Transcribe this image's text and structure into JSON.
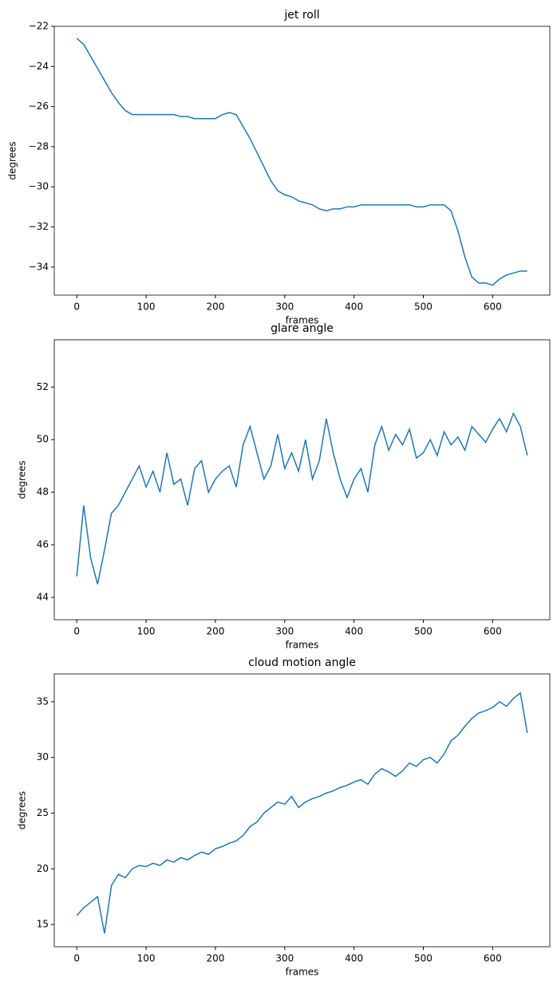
{
  "chart_data": [
    {
      "type": "line",
      "title": "jet roll",
      "x_label": "frames",
      "y_label": "degrees",
      "color": "#1f77b4",
      "x": [
        0,
        10,
        20,
        30,
        40,
        50,
        60,
        70,
        80,
        90,
        100,
        110,
        120,
        130,
        140,
        150,
        160,
        170,
        180,
        190,
        200,
        210,
        220,
        230,
        240,
        250,
        260,
        270,
        280,
        290,
        300,
        310,
        320,
        330,
        340,
        350,
        360,
        370,
        380,
        390,
        400,
        410,
        420,
        430,
        440,
        450,
        460,
        470,
        480,
        490,
        500,
        510,
        520,
        530,
        540,
        550,
        560,
        570,
        580,
        590,
        600,
        610,
        620,
        630,
        640,
        650
      ],
      "values": [
        -22.6,
        -22.9,
        -23.5,
        -24.1,
        -24.7,
        -25.3,
        -25.8,
        -26.2,
        -26.4,
        -26.4,
        -26.4,
        -26.4,
        -26.4,
        -26.4,
        -26.4,
        -26.5,
        -26.5,
        -26.6,
        -26.6,
        -26.6,
        -26.6,
        -26.4,
        -26.3,
        -26.4,
        -27.0,
        -27.6,
        -28.3,
        -29.0,
        -29.7,
        -30.2,
        -30.4,
        -30.5,
        -30.7,
        -30.8,
        -30.9,
        -31.1,
        -31.2,
        -31.1,
        -31.1,
        -31.0,
        -31.0,
        -30.9,
        -30.9,
        -30.9,
        -30.9,
        -30.9,
        -30.9,
        -30.9,
        -30.9,
        -31.0,
        -31.0,
        -30.9,
        -30.9,
        -30.9,
        -31.2,
        -32.2,
        -33.5,
        -34.5,
        -34.8,
        -34.8,
        -34.9,
        -34.6,
        -34.4,
        -34.3,
        -34.2,
        -34.2
      ],
      "xlim": [
        -32.5,
        682.5
      ],
      "ylim": [
        -35.4,
        -22
      ],
      "xticks": [
        0,
        100,
        200,
        300,
        400,
        500,
        600
      ],
      "yticks": [
        {
          "value": -34,
          "label": "−34"
        },
        {
          "value": -32,
          "label": "−32"
        },
        {
          "value": -30,
          "label": "−30"
        },
        {
          "value": -28,
          "label": "−28"
        },
        {
          "value": -26,
          "label": "−26"
        },
        {
          "value": -24,
          "label": "−24"
        },
        {
          "value": -22,
          "label": "−22"
        }
      ]
    },
    {
      "type": "line",
      "title": "glare angle",
      "x_label": "frames",
      "y_label": "degrees",
      "color": "#1f77b4",
      "x": [
        0,
        10,
        20,
        30,
        40,
        50,
        60,
        70,
        80,
        90,
        100,
        110,
        120,
        130,
        140,
        150,
        160,
        170,
        180,
        190,
        200,
        210,
        220,
        230,
        240,
        250,
        260,
        270,
        280,
        290,
        300,
        310,
        320,
        330,
        340,
        350,
        360,
        370,
        380,
        390,
        400,
        410,
        420,
        430,
        440,
        450,
        460,
        470,
        480,
        490,
        500,
        510,
        520,
        530,
        540,
        550,
        560,
        570,
        580,
        590,
        600,
        610,
        620,
        630,
        640,
        650
      ],
      "values": [
        44.8,
        47.5,
        45.5,
        44.5,
        45.8,
        47.2,
        47.5,
        48.0,
        48.5,
        49.0,
        48.2,
        48.8,
        48.0,
        49.5,
        48.3,
        48.5,
        47.5,
        48.9,
        49.2,
        48.0,
        48.5,
        48.8,
        49.0,
        48.2,
        49.8,
        50.5,
        49.5,
        48.5,
        49.0,
        50.2,
        48.9,
        49.5,
        48.8,
        50.0,
        48.5,
        49.2,
        50.8,
        49.5,
        48.5,
        47.8,
        48.5,
        48.9,
        48.0,
        49.8,
        50.5,
        49.6,
        50.2,
        49.8,
        50.4,
        49.3,
        49.5,
        50.0,
        49.4,
        50.3,
        49.8,
        50.1,
        49.6,
        50.5,
        50.2,
        49.9,
        50.4,
        50.8,
        50.3,
        51.0,
        50.5,
        49.4
      ],
      "xlim": [
        -32.5,
        682.5
      ],
      "ylim": [
        43.15,
        53.8
      ],
      "xticks": [
        0,
        100,
        200,
        300,
        400,
        500,
        600
      ],
      "yticks": [
        44,
        46,
        48,
        50,
        52
      ]
    },
    {
      "type": "line",
      "title": "cloud motion angle",
      "x_label": "frames",
      "y_label": "degrees",
      "color": "#1f77b4",
      "x": [
        0,
        10,
        20,
        30,
        40,
        50,
        60,
        70,
        80,
        90,
        100,
        110,
        120,
        130,
        140,
        150,
        160,
        170,
        180,
        190,
        200,
        210,
        220,
        230,
        240,
        250,
        260,
        270,
        280,
        290,
        300,
        310,
        320,
        330,
        340,
        350,
        360,
        370,
        380,
        390,
        400,
        410,
        420,
        430,
        440,
        450,
        460,
        470,
        480,
        490,
        500,
        510,
        520,
        530,
        540,
        550,
        560,
        570,
        580,
        590,
        600,
        610,
        620,
        630,
        640,
        650
      ],
      "values": [
        15.8,
        16.5,
        17.0,
        17.5,
        14.2,
        18.5,
        19.5,
        19.2,
        20.0,
        20.3,
        20.2,
        20.5,
        20.3,
        20.8,
        20.6,
        21.0,
        20.8,
        21.2,
        21.5,
        21.3,
        21.8,
        22.0,
        22.3,
        22.5,
        23.0,
        23.8,
        24.2,
        25.0,
        25.5,
        26.0,
        25.8,
        26.5,
        25.5,
        26.0,
        26.3,
        26.5,
        26.8,
        27.0,
        27.3,
        27.5,
        27.8,
        28.0,
        27.6,
        28.5,
        29.0,
        28.7,
        28.3,
        28.8,
        29.5,
        29.2,
        29.8,
        30.0,
        29.5,
        30.3,
        31.5,
        32.0,
        32.8,
        33.5,
        34.0,
        34.2,
        34.5,
        35.0,
        34.6,
        35.3,
        35.8,
        32.2
      ],
      "xlim": [
        -32.5,
        682.5
      ],
      "ylim": [
        13,
        37.5
      ],
      "xticks": [
        0,
        100,
        200,
        300,
        400,
        500,
        600
      ],
      "yticks": [
        15,
        20,
        25,
        30,
        35
      ]
    }
  ]
}
